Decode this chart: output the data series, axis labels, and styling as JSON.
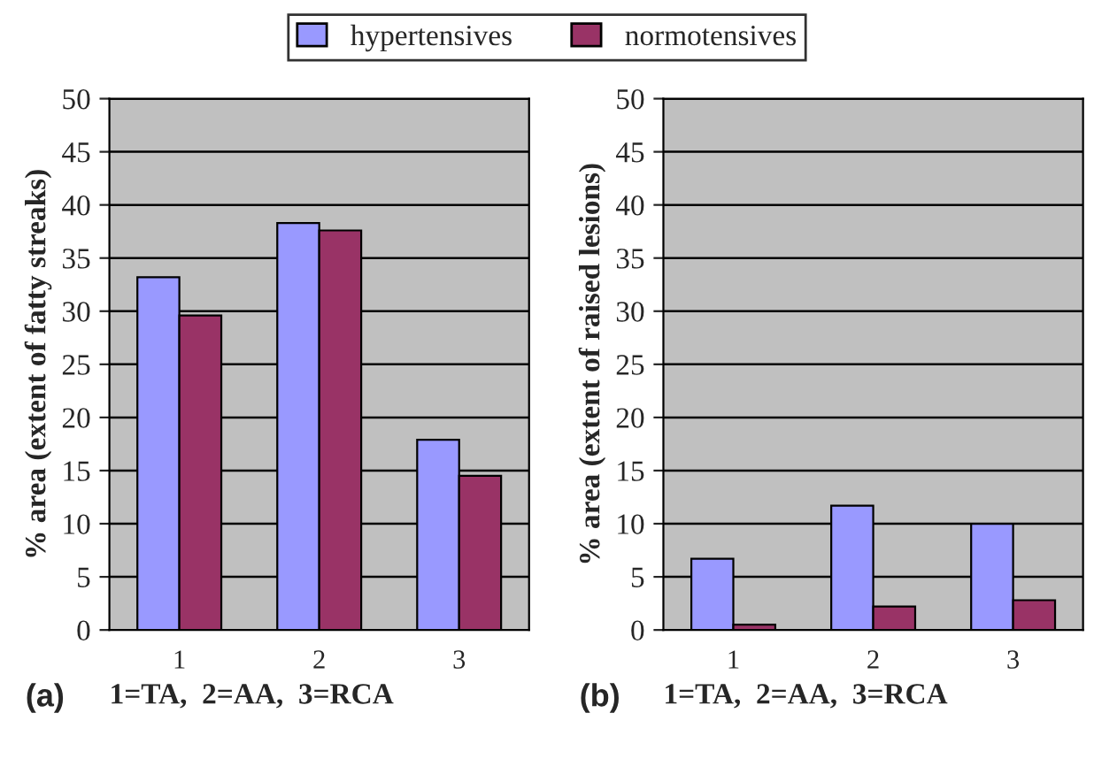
{
  "chart_data": [
    {
      "type": "bar",
      "categories": [
        "1",
        "2",
        "3"
      ],
      "ylabel": "% area (extent of fatty streaks)",
      "xlabel": "1=TA,  2=AA,  3=RCA",
      "annotations": [
        "(a)"
      ],
      "ylim": [
        0,
        50
      ],
      "yticks": [
        0,
        5,
        10,
        15,
        20,
        25,
        30,
        35,
        40,
        45,
        50
      ],
      "grid": "y",
      "legend": "top",
      "series": [
        {
          "name": "hypertensives",
          "color": "#9999ff",
          "values": [
            33.2,
            38.3,
            17.9
          ]
        },
        {
          "name": "normotensives",
          "color": "#993366",
          "values": [
            29.6,
            37.6,
            14.5
          ]
        }
      ]
    },
    {
      "type": "bar",
      "categories": [
        "1",
        "2",
        "3"
      ],
      "ylabel": "% area (extent of raised lesions)",
      "xlabel": "1=TA,  2=AA,  3=RCA",
      "annotations": [
        "(b)"
      ],
      "ylim": [
        0,
        50
      ],
      "yticks": [
        0,
        5,
        10,
        15,
        20,
        25,
        30,
        35,
        40,
        45,
        50
      ],
      "grid": "y",
      "series": [
        {
          "color": "#9999ff",
          "values": [
            6.7,
            11.7,
            10.0
          ]
        },
        {
          "color": "#993366",
          "values": [
            0.5,
            2.2,
            2.8
          ]
        }
      ]
    }
  ]
}
